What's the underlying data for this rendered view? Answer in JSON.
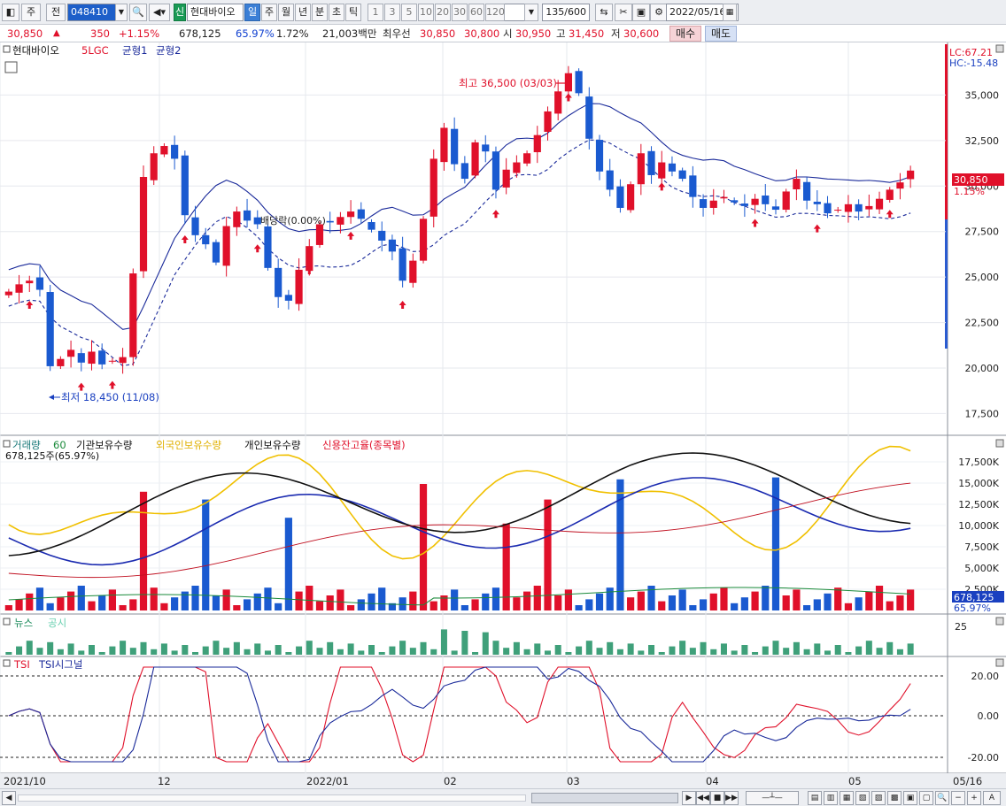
{
  "toolbar": {
    "tab_main": "주",
    "tab_prev": "전",
    "code": "048410",
    "badge": "신",
    "name": "현대바이오",
    "periods": [
      "일",
      "주",
      "월",
      "년",
      "분",
      "초",
      "틱"
    ],
    "intervals": [
      "1",
      "3",
      "5",
      "10",
      "20",
      "30",
      "60",
      "120"
    ],
    "count": "135/600",
    "date": "2022/05/16"
  },
  "quote": {
    "price": "30,850",
    "change": "350",
    "change_pct": "+1.15%",
    "volume": "678,125",
    "vol_ratio": "65.97%",
    "turnover_pct": "1.72%",
    "amount": "21,003백만",
    "best_label": "최우선",
    "ask": "30,850",
    "bid": "30,800",
    "open_label": "시",
    "open": "30,950",
    "high_label": "고",
    "high": "31,450",
    "low_label": "저",
    "low": "30,600",
    "buy": "매수",
    "sell": "매도"
  },
  "price_panel": {
    "legend": [
      "현대바이오",
      "5LGC",
      "균형1",
      "균형2"
    ],
    "lc": "LC:67.21",
    "hc": "HC:-15.48",
    "last_price": "30,850",
    "last_pct": "1.15%",
    "max_label": "최고 36,500 (03/03)",
    "min_label": "최저 18,450 (11/08)",
    "dividend_label": "배당락(0.00%)",
    "yticks": [
      "35,000",
      "32,500",
      "30,000",
      "27,500",
      "25,000",
      "22,500",
      "20,000",
      "17,500"
    ]
  },
  "volume_panel": {
    "legend": [
      "거래량",
      "60",
      "기관보유수량",
      "외국인보유수량",
      "개인보유수량",
      "신용잔고율(종목별)"
    ],
    "sub": "678,125주(65.97%)",
    "last_volume": "678,125",
    "last_pct": "65.97%",
    "yticks": [
      "17,500K",
      "15,000K",
      "12,500K",
      "10,000K",
      "7,500K",
      "5,000K",
      "2,500K"
    ]
  },
  "news_panel": {
    "legend": [
      "뉴스",
      "공시"
    ],
    "ytick": "25"
  },
  "tsi_panel": {
    "legend": [
      "TSI",
      "TSI시그널"
    ],
    "yticks": [
      "20.00",
      "0.00",
      "-20.00"
    ]
  },
  "xaxis": [
    "2021/10",
    "12",
    "2022/01",
    "02",
    "03",
    "04",
    "05",
    "05/16"
  ],
  "chart_data": {
    "type": "candlestick",
    "title": "현대바이오",
    "ylim": [
      16500,
      37500
    ],
    "yticks": [
      17500,
      20000,
      22500,
      25000,
      27500,
      30000,
      32500,
      35000
    ],
    "x": [
      "2021/10",
      "12",
      "2022/01",
      "02",
      "03",
      "04",
      "05",
      "05/16"
    ],
    "last_close": 30850,
    "high": {
      "value": 36500,
      "date": "03/03"
    },
    "low": {
      "value": 18450,
      "date": "11/08"
    },
    "closes": [
      24200,
      24600,
      24800,
      24300,
      20100,
      20500,
      21000,
      20300,
      20900,
      20200,
      20400,
      20600,
      25200,
      30500,
      31800,
      32200,
      31500,
      28400,
      27300,
      26800,
      25800,
      27800,
      28600,
      28100,
      27900,
      25500,
      23900,
      23700,
      25400,
      26700,
      27900,
      28000,
      28300,
      28600,
      28200,
      27600,
      27000,
      26400,
      24800,
      25900,
      28200,
      31500,
      33200,
      31200,
      30400,
      32400,
      31900,
      29800,
      30900,
      31300,
      31800,
      32800,
      34100,
      35200,
      36200,
      35100,
      32600,
      30800,
      29800,
      28800,
      30100,
      31800,
      30600,
      31300,
      30800,
      30400,
      29400,
      28800,
      29200,
      29400,
      29100,
      28900,
      29300,
      29000,
      28700,
      29700,
      30400,
      29200,
      29000,
      28500,
      28700,
      29000,
      28600,
      28900,
      29300,
      29800,
      30200,
      30850
    ]
  }
}
